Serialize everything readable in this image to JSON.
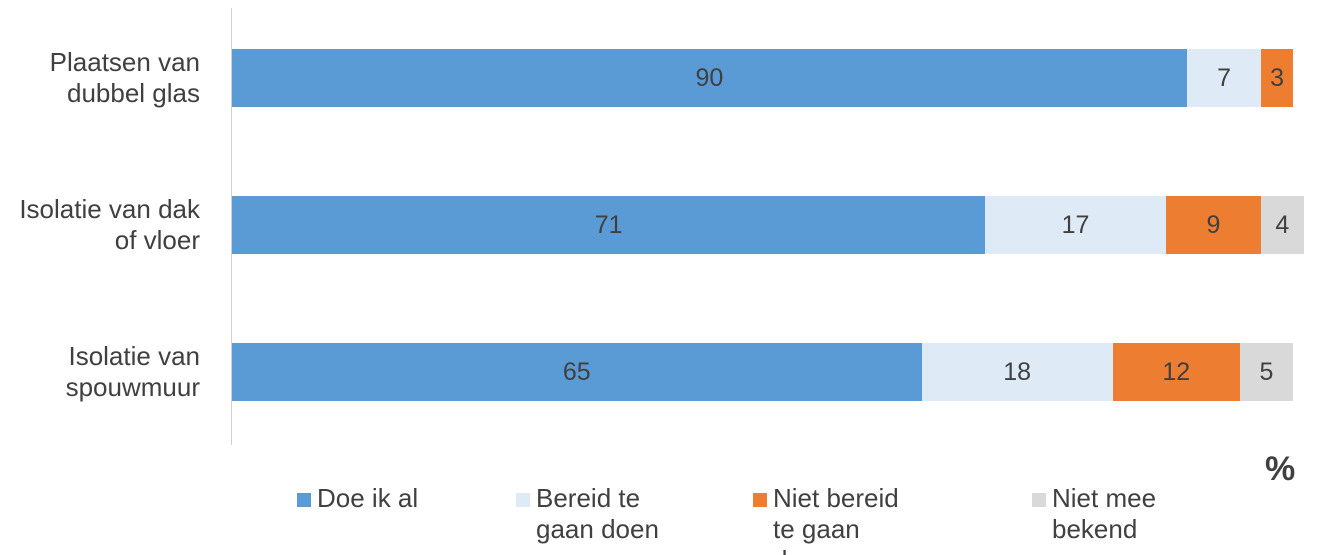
{
  "chart_data": {
    "type": "stacked_barh",
    "categories": [
      "Plaatsen van dubbel glas",
      "Isolatie van dak of vloer",
      "Isolatie van spouwmuur"
    ],
    "series": [
      {
        "name": "Doe ik al",
        "color": "#5b9bd5",
        "values": [
          90,
          71,
          65
        ]
      },
      {
        "name": "Bereid te gaan doen",
        "color": "#deebf7",
        "values": [
          7,
          17,
          18
        ]
      },
      {
        "name": "Niet bereid te gaan doen",
        "color": "#ed7d31",
        "values": [
          3,
          9,
          12
        ]
      },
      {
        "name": "Niet mee bekend",
        "color": "#d9d9d9",
        "values": [
          null,
          4,
          5
        ]
      }
    ],
    "xlim": [
      0,
      100
    ],
    "x_label": "%",
    "legend": "bottom"
  }
}
